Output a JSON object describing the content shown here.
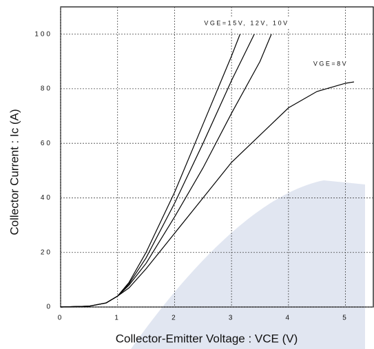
{
  "chart_data": {
    "type": "line",
    "xlabel": "Collector-Emitter Voltage : VCE (V)",
    "ylabel": "Collector Current : Ic (A)",
    "annotations": [
      "VGE=15V, 12V, 10V",
      "VGE=8V"
    ],
    "xlim": [
      0,
      5.5
    ],
    "ylim": [
      0,
      110
    ],
    "xticks": [
      0,
      1,
      2,
      3,
      4,
      5
    ],
    "yticks": [
      0,
      20,
      40,
      60,
      80,
      100
    ],
    "grid": true,
    "series": [
      {
        "color": "#000000",
        "x": [
          0,
          0.5,
          0.8,
          1,
          1.2,
          1.5,
          2,
          2.5,
          3,
          3.15
        ],
        "values": [
          0,
          0.3,
          1.5,
          4,
          9,
          20,
          42,
          67,
          92,
          100
        ]
      },
      {
        "color": "#000000",
        "x": [
          0,
          0.5,
          0.8,
          1,
          1.2,
          1.5,
          2,
          2.5,
          3,
          3.4
        ],
        "values": [
          0,
          0.3,
          1.5,
          4,
          8.5,
          18,
          38,
          60,
          83,
          100
        ]
      },
      {
        "color": "#000000",
        "x": [
          0,
          0.5,
          0.8,
          1,
          1.2,
          1.5,
          2,
          2.5,
          3,
          3.5,
          3.7
        ],
        "values": [
          0,
          0.3,
          1.5,
          4,
          8,
          16,
          33,
          51,
          71,
          90,
          100
        ]
      },
      {
        "color": "#000000",
        "x": [
          0,
          0.5,
          0.8,
          1,
          1.2,
          1.5,
          2,
          2.5,
          3,
          3.5,
          4,
          4.5,
          5,
          5.15
        ],
        "values": [
          0,
          0.3,
          1.5,
          4,
          7,
          14,
          27,
          40,
          53,
          63,
          73,
          79,
          82,
          82.5
        ]
      }
    ]
  }
}
